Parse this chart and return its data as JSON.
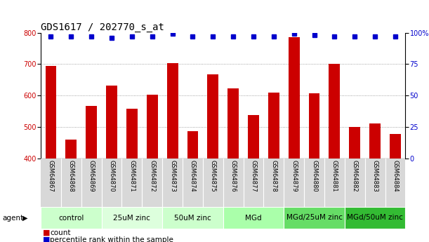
{
  "title": "GDS1617 / 202770_s_at",
  "samples": [
    "GSM64867",
    "GSM64868",
    "GSM64869",
    "GSM64870",
    "GSM64871",
    "GSM64872",
    "GSM64873",
    "GSM64874",
    "GSM64875",
    "GSM64876",
    "GSM64877",
    "GSM64878",
    "GSM64879",
    "GSM64880",
    "GSM64881",
    "GSM64882",
    "GSM64883",
    "GSM64884"
  ],
  "counts": [
    695,
    460,
    567,
    631,
    558,
    603,
    703,
    487,
    667,
    624,
    539,
    609,
    785,
    608,
    700,
    501,
    511,
    477
  ],
  "percentiles": [
    97,
    97,
    97,
    96,
    97,
    97,
    99,
    97,
    97,
    97,
    97,
    97,
    99,
    98,
    97,
    97,
    97,
    97
  ],
  "groups": [
    {
      "label": "control",
      "start": 0,
      "end": 3,
      "color": "#ccffcc"
    },
    {
      "label": "25uM zinc",
      "start": 3,
      "end": 6,
      "color": "#ddffdd"
    },
    {
      "label": "50uM zinc",
      "start": 6,
      "end": 9,
      "color": "#ccffcc"
    },
    {
      "label": "MGd",
      "start": 9,
      "end": 12,
      "color": "#aaffaa"
    },
    {
      "label": "MGd/25uM zinc",
      "start": 12,
      "end": 15,
      "color": "#66dd66"
    },
    {
      "label": "MGd/50uM zinc",
      "start": 15,
      "end": 18,
      "color": "#33bb33"
    }
  ],
  "ylim_left": [
    400,
    800
  ],
  "ylim_right": [
    0,
    100
  ],
  "yticks_left": [
    400,
    500,
    600,
    700,
    800
  ],
  "yticks_right": [
    0,
    25,
    50,
    75,
    100
  ],
  "ytick_right_labels": [
    "0",
    "25",
    "50",
    "75",
    "100%"
  ],
  "bar_color": "#cc0000",
  "dot_color": "#0000cc",
  "bar_width": 0.55,
  "legend_count_label": "count",
  "legend_pct_label": "percentile rank within the sample",
  "agent_label": "agent",
  "bg_xtick": "#d8d8d8",
  "grid_color": "#888888",
  "title_fontsize": 10,
  "tick_fontsize": 7,
  "sample_fontsize": 6,
  "group_label_fontsize": 7.5,
  "legend_fontsize": 7.5
}
